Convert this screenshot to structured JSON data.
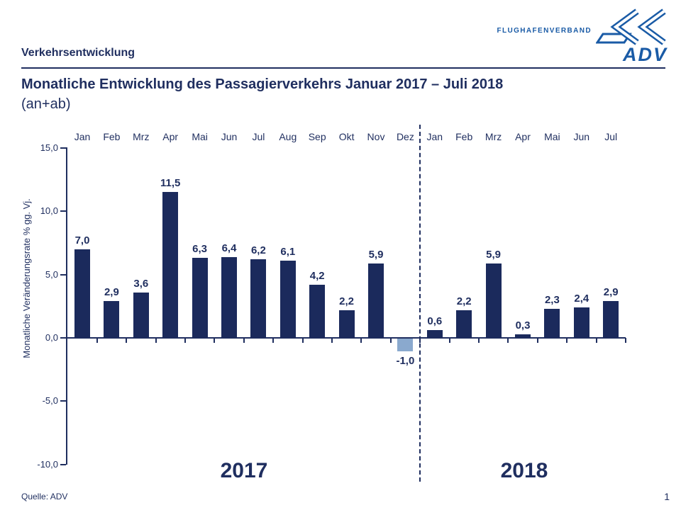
{
  "colors": {
    "navy_text": "#1F2E5F",
    "bar": "#1B2A5C",
    "negative_bar": "#8AA9CE",
    "logo_blue": "#1A5BA6"
  },
  "header": {
    "section_label": "Verkehrsentwicklung",
    "logo_text": "FLUGHAFENVERBAND",
    "logo_wordmark": "ADV"
  },
  "title": {
    "line1": "Monatliche Entwicklung des Passagierverkehrs  Januar 2017 – Juli 2018",
    "line2": "(an+ab)"
  },
  "chart_data": {
    "type": "bar",
    "title": "Monatliche Entwicklung des Passagierverkehrs Januar 2017 – Juli 2018 (an+ab)",
    "ylabel": "Monatliche Veränderungsrate % gg. Vj.",
    "categories": [
      "Jan",
      "Feb",
      "Mrz",
      "Apr",
      "Mai",
      "Jun",
      "Jul",
      "Aug",
      "Sep",
      "Okt",
      "Nov",
      "Dez",
      "Jan",
      "Feb",
      "Mrz",
      "Apr",
      "Mai",
      "Jun",
      "Jul"
    ],
    "values": [
      7.0,
      2.9,
      3.6,
      11.5,
      6.3,
      6.4,
      6.2,
      6.1,
      4.2,
      2.2,
      5.9,
      -1.0,
      0.6,
      2.2,
      5.9,
      0.3,
      2.3,
      2.4,
      2.9
    ],
    "value_labels": [
      "7,0",
      "2,9",
      "3,6",
      "11,5",
      "6,3",
      "6,4",
      "6,2",
      "6,1",
      "4,2",
      "2,2",
      "5,9",
      "-1,0",
      "0,6",
      "2,2",
      "5,9",
      "0,3",
      "2,3",
      "2,4",
      "2,9"
    ],
    "group_labels": [
      "2017",
      "2018"
    ],
    "group_split_index": 12,
    "negative_bar_index": 11,
    "ylim": [
      -10,
      15
    ],
    "yticks": [
      {
        "value": 15,
        "label": "15,0"
      },
      {
        "value": 10,
        "label": "10,0"
      },
      {
        "value": 5,
        "label": "5,0"
      },
      {
        "value": 0,
        "label": "0,0"
      },
      {
        "value": -5,
        "label": "-5,0"
      },
      {
        "value": -10,
        "label": "-10,0"
      }
    ],
    "grid": false,
    "legend": "none"
  },
  "footer": {
    "source": "Quelle: ADV",
    "page_number": "1"
  }
}
